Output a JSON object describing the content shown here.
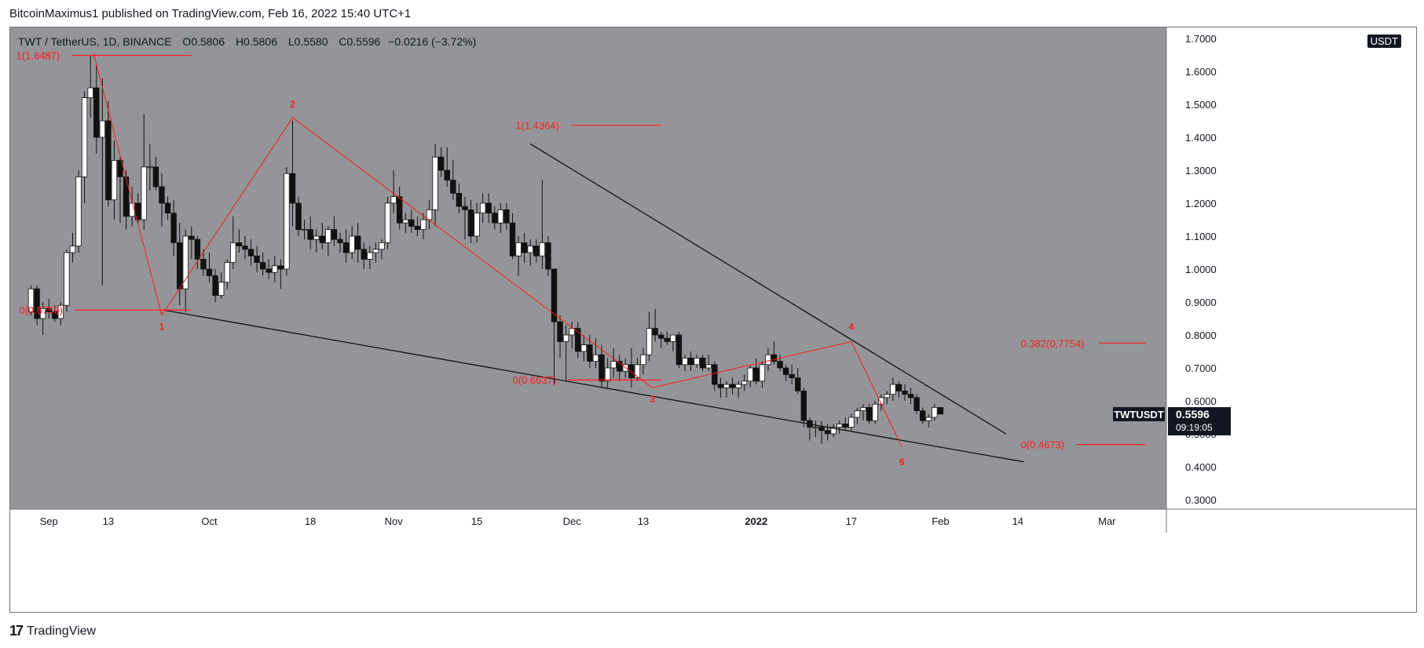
{
  "header": {
    "publisher_line": "BitcoinMaximus1 published on TradingView.com, Feb 16, 2022 15:40 UTC+1"
  },
  "legend": {
    "symbol": "TWT / TetherUS, 1D, BINANCE",
    "o_label": "O",
    "o_value": "0.5806",
    "h_label": "H",
    "h_value": "0.5806",
    "l_label": "L",
    "l_value": "0.5580",
    "c_label": "C",
    "c_value": "0.5596",
    "change": "−0.0216 (−3.72%)"
  },
  "currency_badge": "USDT",
  "price_tag": {
    "symbol": "TWTUSDT",
    "price": "0.5596",
    "countdown": "09:19:05"
  },
  "footer": {
    "logo_text": "TradingView"
  },
  "colors": {
    "plot_bg": "#949599",
    "axis_bg": "#ffffff",
    "red": "#ff1a1a",
    "black": "#111111",
    "candle_up": "#ffffff",
    "candle_down": "#111111",
    "text": "#131722"
  },
  "chart_data": {
    "type": "candlestick",
    "title": "TWT / TetherUS, 1D, BINANCE",
    "ylim": [
      0.3,
      1.7
    ],
    "y_ticks": [
      "1.7000",
      "1.6000",
      "1.5000",
      "1.4000",
      "1.3000",
      "1.2000",
      "1.1000",
      "1.0000",
      "0.9000",
      "0.8000",
      "0.7000",
      "0.6000",
      "0.5000",
      "0.4000",
      "0.3000"
    ],
    "y_tick_values": [
      1.7,
      1.6,
      1.5,
      1.4,
      1.3,
      1.2,
      1.1,
      1.0,
      0.9,
      0.8,
      0.7,
      0.6,
      0.5,
      0.4,
      0.3
    ],
    "x_ticks": [
      {
        "label": "Sep",
        "day": 3,
        "bold": false
      },
      {
        "label": "13",
        "day": 13,
        "bold": false
      },
      {
        "label": "Oct",
        "day": 30,
        "bold": false
      },
      {
        "label": "18",
        "day": 47,
        "bold": false
      },
      {
        "label": "Nov",
        "day": 61,
        "bold": false
      },
      {
        "label": "15",
        "day": 75,
        "bold": false
      },
      {
        "label": "Dec",
        "day": 91,
        "bold": false
      },
      {
        "label": "13",
        "day": 103,
        "bold": false
      },
      {
        "label": "2022",
        "day": 122,
        "bold": true
      },
      {
        "label": "17",
        "day": 138,
        "bold": false
      },
      {
        "label": "Feb",
        "day": 153,
        "bold": false
      },
      {
        "label": "14",
        "day": 166,
        "bold": false
      },
      {
        "label": "Mar",
        "day": 181,
        "bold": false
      }
    ],
    "x_range_days": [
      -3.5,
      191.0
    ],
    "candles": [
      [
        0.87,
        0.95,
        0.86,
        0.94
      ],
      [
        0.94,
        0.95,
        0.83,
        0.85
      ],
      [
        0.85,
        0.9,
        0.8,
        0.88
      ],
      [
        0.88,
        0.91,
        0.85,
        0.87
      ],
      [
        0.87,
        0.89,
        0.84,
        0.85
      ],
      [
        0.85,
        0.9,
        0.83,
        0.89
      ],
      [
        0.89,
        1.06,
        0.87,
        1.05
      ],
      [
        1.05,
        1.11,
        1.02,
        1.07
      ],
      [
        1.07,
        1.3,
        1.05,
        1.28
      ],
      [
        1.28,
        1.54,
        1.2,
        1.52
      ],
      [
        1.52,
        1.65,
        1.46,
        1.55
      ],
      [
        1.55,
        1.62,
        1.35,
        1.4
      ],
      [
        1.4,
        1.58,
        0.95,
        1.45
      ],
      [
        1.45,
        1.51,
        1.19,
        1.21
      ],
      [
        1.21,
        1.39,
        1.15,
        1.33
      ],
      [
        1.33,
        1.34,
        1.14,
        1.28
      ],
      [
        1.28,
        1.3,
        1.12,
        1.16
      ],
      [
        1.16,
        1.25,
        1.13,
        1.2
      ],
      [
        1.2,
        1.23,
        1.14,
        1.15
      ],
      [
        1.15,
        1.47,
        1.12,
        1.31
      ],
      [
        1.31,
        1.38,
        1.24,
        1.31
      ],
      [
        1.31,
        1.34,
        1.24,
        1.25
      ],
      [
        1.25,
        1.29,
        1.13,
        1.2
      ],
      [
        1.2,
        1.22,
        1.15,
        1.17
      ],
      [
        1.17,
        1.21,
        1.04,
        1.08
      ],
      [
        1.08,
        1.14,
        0.89,
        0.94
      ],
      [
        0.94,
        1.12,
        0.87,
        1.1
      ],
      [
        1.1,
        1.13,
        1.03,
        1.09
      ],
      [
        1.09,
        1.1,
        1.0,
        1.03
      ],
      [
        1.03,
        1.06,
        0.98,
        1.0
      ],
      [
        1.0,
        1.05,
        0.96,
        0.98
      ],
      [
        0.98,
        1.0,
        0.9,
        0.92
      ],
      [
        0.92,
        0.99,
        0.91,
        0.96
      ],
      [
        0.96,
        1.03,
        0.94,
        1.02
      ],
      [
        1.02,
        1.16,
        1.0,
        1.08
      ],
      [
        1.08,
        1.12,
        1.05,
        1.07
      ],
      [
        1.07,
        1.1,
        1.03,
        1.06
      ],
      [
        1.06,
        1.09,
        1.01,
        1.04
      ],
      [
        1.04,
        1.07,
        0.99,
        1.02
      ],
      [
        1.02,
        1.05,
        0.98,
        1.0
      ],
      [
        1.0,
        1.03,
        0.97,
        0.99
      ],
      [
        0.99,
        1.04,
        0.96,
        1.01
      ],
      [
        1.01,
        1.03,
        0.94,
        1.0
      ],
      [
        1.0,
        1.31,
        0.98,
        1.29
      ],
      [
        1.29,
        1.45,
        1.13,
        1.2
      ],
      [
        1.2,
        1.22,
        1.1,
        1.12
      ],
      [
        1.12,
        1.15,
        1.09,
        1.12
      ],
      [
        1.12,
        1.16,
        1.06,
        1.09
      ],
      [
        1.09,
        1.12,
        1.05,
        1.1
      ],
      [
        1.1,
        1.14,
        1.06,
        1.08
      ],
      [
        1.08,
        1.13,
        1.04,
        1.12
      ],
      [
        1.12,
        1.16,
        1.07,
        1.09
      ],
      [
        1.09,
        1.11,
        1.05,
        1.08
      ],
      [
        1.08,
        1.12,
        1.02,
        1.05
      ],
      [
        1.05,
        1.13,
        1.03,
        1.1
      ],
      [
        1.1,
        1.14,
        1.02,
        1.06
      ],
      [
        1.06,
        1.08,
        1.0,
        1.03
      ],
      [
        1.03,
        1.07,
        1.0,
        1.05
      ],
      [
        1.05,
        1.08,
        1.02,
        1.06
      ],
      [
        1.06,
        1.09,
        1.03,
        1.08
      ],
      [
        1.08,
        1.22,
        1.06,
        1.2
      ],
      [
        1.2,
        1.3,
        1.17,
        1.22
      ],
      [
        1.22,
        1.25,
        1.12,
        1.14
      ],
      [
        1.14,
        1.17,
        1.11,
        1.15
      ],
      [
        1.15,
        1.18,
        1.11,
        1.13
      ],
      [
        1.13,
        1.16,
        1.1,
        1.12
      ],
      [
        1.12,
        1.17,
        1.09,
        1.15
      ],
      [
        1.15,
        1.21,
        1.12,
        1.18
      ],
      [
        1.18,
        1.38,
        1.13,
        1.34
      ],
      [
        1.34,
        1.37,
        1.28,
        1.3
      ],
      [
        1.3,
        1.37,
        1.25,
        1.27
      ],
      [
        1.27,
        1.33,
        1.21,
        1.23
      ],
      [
        1.23,
        1.26,
        1.17,
        1.19
      ],
      [
        1.19,
        1.22,
        1.09,
        1.18
      ],
      [
        1.18,
        1.21,
        1.08,
        1.1
      ],
      [
        1.1,
        1.2,
        1.08,
        1.17
      ],
      [
        1.17,
        1.23,
        1.14,
        1.2
      ],
      [
        1.2,
        1.23,
        1.14,
        1.17
      ],
      [
        1.17,
        1.19,
        1.12,
        1.14
      ],
      [
        1.14,
        1.2,
        1.11,
        1.18
      ],
      [
        1.18,
        1.2,
        1.12,
        1.14
      ],
      [
        1.14,
        1.17,
        1.03,
        1.04
      ],
      [
        1.04,
        1.1,
        0.98,
        1.08
      ],
      [
        1.08,
        1.11,
        1.02,
        1.05
      ],
      [
        1.05,
        1.09,
        1.01,
        1.07
      ],
      [
        1.07,
        1.09,
        1.02,
        1.04
      ],
      [
        1.04,
        1.27,
        1.0,
        1.08
      ],
      [
        1.08,
        1.1,
        0.98,
        1.0
      ],
      [
        1.0,
        1.0,
        0.65,
        0.84
      ],
      [
        0.84,
        0.86,
        0.73,
        0.78
      ],
      [
        0.78,
        0.83,
        0.66,
        0.8
      ],
      [
        0.8,
        0.84,
        0.76,
        0.82
      ],
      [
        0.82,
        0.84,
        0.73,
        0.75
      ],
      [
        0.75,
        0.8,
        0.72,
        0.77
      ],
      [
        0.77,
        0.8,
        0.7,
        0.72
      ],
      [
        0.72,
        0.79,
        0.7,
        0.74
      ],
      [
        0.74,
        0.77,
        0.64,
        0.66
      ],
      [
        0.66,
        0.73,
        0.64,
        0.7
      ],
      [
        0.7,
        0.76,
        0.67,
        0.72
      ],
      [
        0.72,
        0.74,
        0.66,
        0.69
      ],
      [
        0.69,
        0.73,
        0.67,
        0.71
      ],
      [
        0.71,
        0.76,
        0.64,
        0.67
      ],
      [
        0.67,
        0.73,
        0.66,
        0.71
      ],
      [
        0.71,
        0.76,
        0.68,
        0.74
      ],
      [
        0.74,
        0.87,
        0.72,
        0.82
      ],
      [
        0.82,
        0.88,
        0.78,
        0.8
      ],
      [
        0.8,
        0.81,
        0.76,
        0.79
      ],
      [
        0.79,
        0.81,
        0.77,
        0.78
      ],
      [
        0.78,
        0.8,
        0.75,
        0.8
      ],
      [
        0.8,
        0.81,
        0.7,
        0.71
      ],
      [
        0.71,
        0.74,
        0.69,
        0.73
      ],
      [
        0.73,
        0.75,
        0.69,
        0.71
      ],
      [
        0.71,
        0.74,
        0.7,
        0.73
      ],
      [
        0.73,
        0.74,
        0.69,
        0.7
      ],
      [
        0.7,
        0.74,
        0.69,
        0.71
      ],
      [
        0.71,
        0.72,
        0.63,
        0.65
      ],
      [
        0.65,
        0.67,
        0.61,
        0.64
      ],
      [
        0.64,
        0.66,
        0.61,
        0.65
      ],
      [
        0.65,
        0.67,
        0.62,
        0.64
      ],
      [
        0.64,
        0.66,
        0.61,
        0.65
      ],
      [
        0.65,
        0.68,
        0.63,
        0.66
      ],
      [
        0.66,
        0.71,
        0.64,
        0.7
      ],
      [
        0.7,
        0.73,
        0.65,
        0.66
      ],
      [
        0.66,
        0.72,
        0.64,
        0.71
      ],
      [
        0.71,
        0.76,
        0.69,
        0.74
      ],
      [
        0.74,
        0.78,
        0.71,
        0.72
      ],
      [
        0.72,
        0.74,
        0.69,
        0.7
      ],
      [
        0.7,
        0.71,
        0.66,
        0.68
      ],
      [
        0.68,
        0.71,
        0.65,
        0.67
      ],
      [
        0.67,
        0.7,
        0.62,
        0.63
      ],
      [
        0.63,
        0.64,
        0.52,
        0.54
      ],
      [
        0.54,
        0.55,
        0.48,
        0.52
      ],
      [
        0.52,
        0.54,
        0.49,
        0.52
      ],
      [
        0.52,
        0.54,
        0.47,
        0.51
      ],
      [
        0.51,
        0.53,
        0.48,
        0.5
      ],
      [
        0.5,
        0.53,
        0.49,
        0.52
      ],
      [
        0.52,
        0.54,
        0.5,
        0.53
      ],
      [
        0.53,
        0.55,
        0.51,
        0.52
      ],
      [
        0.52,
        0.56,
        0.51,
        0.55
      ],
      [
        0.55,
        0.58,
        0.53,
        0.57
      ],
      [
        0.57,
        0.59,
        0.54,
        0.58
      ],
      [
        0.58,
        0.59,
        0.53,
        0.54
      ],
      [
        0.54,
        0.6,
        0.53,
        0.59
      ],
      [
        0.59,
        0.62,
        0.57,
        0.61
      ],
      [
        0.61,
        0.63,
        0.59,
        0.62
      ],
      [
        0.62,
        0.67,
        0.6,
        0.65
      ],
      [
        0.65,
        0.66,
        0.61,
        0.63
      ],
      [
        0.63,
        0.65,
        0.6,
        0.62
      ],
      [
        0.62,
        0.64,
        0.59,
        0.61
      ],
      [
        0.61,
        0.62,
        0.56,
        0.57
      ],
      [
        0.57,
        0.58,
        0.53,
        0.54
      ],
      [
        0.54,
        0.56,
        0.52,
        0.55
      ],
      [
        0.55,
        0.59,
        0.54,
        0.58
      ],
      [
        0.58,
        0.58,
        0.56,
        0.56
      ]
    ],
    "trendlines": [
      {
        "color": "black",
        "points": [
          [
            84.0,
            1.38
          ],
          [
            164.0,
            0.5
          ]
        ]
      },
      {
        "color": "black",
        "points": [
          [
            22.5,
            0.875
          ],
          [
            167.0,
            0.415
          ]
        ]
      }
    ],
    "wave_path": {
      "color": "red",
      "points": [
        [
          10.5,
          1.655
        ],
        [
          22.0,
          0.86
        ],
        [
          44.0,
          1.46
        ],
        [
          104.5,
          0.64
        ],
        [
          138.0,
          0.78
        ],
        [
          146.5,
          0.46
        ]
      ]
    },
    "wave_labels": [
      {
        "text": "1",
        "day": 22.0,
        "price": 0.815
      },
      {
        "text": "2",
        "day": 44.0,
        "price": 1.49
      },
      {
        "text": "3",
        "day": 104.5,
        "price": 0.595
      },
      {
        "text": "4",
        "day": 138.0,
        "price": 0.815
      },
      {
        "text": "5",
        "day": 146.5,
        "price": 0.405
      }
    ],
    "fib_levels": [
      {
        "text": "1(1.6487)",
        "price": 1.6487,
        "from_day": -2.5,
        "to_day": 27.0
      },
      {
        "text": "0(0.8759)",
        "price": 0.8759,
        "from_day": -2.0,
        "to_day": 27.0
      },
      {
        "text": "1(1.4364)",
        "price": 1.4364,
        "from_day": 81.5,
        "to_day": 106.0
      },
      {
        "text": "0(0.6637)",
        "price": 0.6637,
        "from_day": 81.0,
        "to_day": 106.0
      },
      {
        "text": "0.382(0.7754)",
        "price": 0.7754,
        "from_day": 166.5,
        "to_day": 187.5
      },
      {
        "text": "0(0.4673)",
        "price": 0.4673,
        "from_day": 166.5,
        "to_day": 187.5
      }
    ],
    "last_price": 0.5596
  }
}
